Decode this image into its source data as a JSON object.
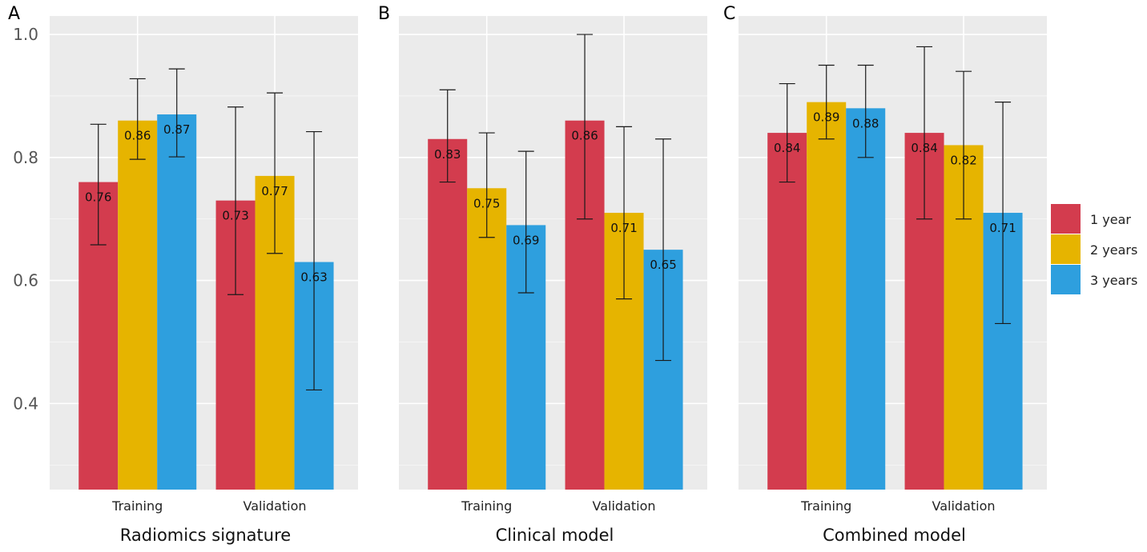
{
  "chart_data": [
    {
      "type": "bar",
      "panel": "A",
      "title": "",
      "xlabel": "Radiomics signature",
      "ylabel": "",
      "ylim": [
        0.26,
        1.03
      ],
      "yticks": [
        "0.4",
        "0.6",
        "0.8",
        "1.0"
      ],
      "categories": [
        "Training",
        "Validation"
      ],
      "series": [
        {
          "name": "1 year",
          "values": [
            0.76,
            0.73
          ],
          "labels": [
            "0.76",
            "0.73"
          ],
          "ci_low": [
            0.658,
            0.577
          ],
          "ci_high": [
            0.854,
            0.882
          ]
        },
        {
          "name": "2 years",
          "values": [
            0.86,
            0.77
          ],
          "labels": [
            "0.86",
            "0.77"
          ],
          "ci_low": [
            0.797,
            0.644
          ],
          "ci_high": [
            0.928,
            0.905
          ]
        },
        {
          "name": "3 years",
          "values": [
            0.87,
            0.63
          ],
          "labels": [
            "0.87",
            "0.63"
          ],
          "ci_low": [
            0.801,
            0.422
          ],
          "ci_high": [
            0.944,
            0.842
          ]
        }
      ]
    },
    {
      "type": "bar",
      "panel": "B",
      "title": "",
      "xlabel": "Clinical model",
      "ylabel": "",
      "ylim": [
        0.26,
        1.03
      ],
      "yticks": [
        "0.4",
        "0.6",
        "0.8",
        "1.0"
      ],
      "categories": [
        "Training",
        "Validation"
      ],
      "series": [
        {
          "name": "1 year",
          "values": [
            0.83,
            0.86
          ],
          "labels": [
            "0.83",
            "0.86"
          ],
          "ci_low": [
            0.76,
            0.7
          ],
          "ci_high": [
            0.91,
            1.0
          ]
        },
        {
          "name": "2 years",
          "values": [
            0.75,
            0.71
          ],
          "labels": [
            "0.75",
            "0.71"
          ],
          "ci_low": [
            0.67,
            0.57
          ],
          "ci_high": [
            0.84,
            0.85
          ]
        },
        {
          "name": "3 years",
          "values": [
            0.69,
            0.65
          ],
          "labels": [
            "0.69",
            "0.65"
          ],
          "ci_low": [
            0.58,
            0.47
          ],
          "ci_high": [
            0.81,
            0.83
          ]
        }
      ]
    },
    {
      "type": "bar",
      "panel": "C",
      "title": "",
      "xlabel": "Combined model",
      "ylabel": "",
      "ylim": [
        0.26,
        1.03
      ],
      "yticks": [
        "0.4",
        "0.6",
        "0.8",
        "1.0"
      ],
      "categories": [
        "Training",
        "Validation"
      ],
      "series": [
        {
          "name": "1 year",
          "values": [
            0.84,
            0.84
          ],
          "labels": [
            "0.84",
            "0.84"
          ],
          "ci_low": [
            0.76,
            0.7
          ],
          "ci_high": [
            0.92,
            0.98
          ]
        },
        {
          "name": "2 years",
          "values": [
            0.89,
            0.82
          ],
          "labels": [
            "0.89",
            "0.82"
          ],
          "ci_low": [
            0.83,
            0.7
          ],
          "ci_high": [
            0.95,
            0.94
          ]
        },
        {
          "name": "3 years",
          "values": [
            0.88,
            0.71
          ],
          "labels": [
            "0.88",
            "0.71"
          ],
          "ci_low": [
            0.8,
            0.53
          ],
          "ci_high": [
            0.95,
            0.89
          ]
        }
      ]
    }
  ],
  "legend": {
    "placement": "right",
    "entries": [
      "1 year",
      "2 years",
      "3 years"
    ]
  },
  "colors": {
    "series": [
      "#d33c4e",
      "#e6b400",
      "#2e9fde"
    ],
    "panel_bg": "#ebebeb",
    "grid": "#ffffff",
    "errorbar": "#1a1a1a"
  }
}
